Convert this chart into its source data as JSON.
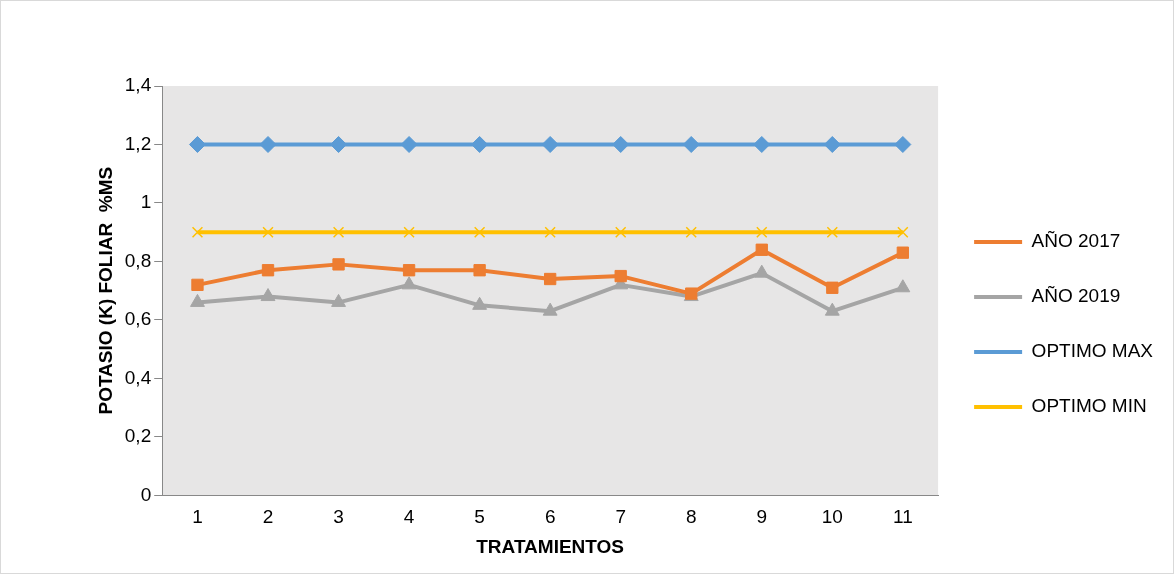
{
  "chart_data": {
    "type": "line",
    "xlabel": "TRATAMIENTOS",
    "ylabel": "POTASIO (K) FOLIAR  %MS",
    "categories": [
      "1",
      "2",
      "3",
      "4",
      "5",
      "6",
      "7",
      "8",
      "9",
      "10",
      "11"
    ],
    "series": [
      {
        "name": "AÑO 2017",
        "color": "#ed7d31",
        "marker": "square",
        "values": [
          0.72,
          0.77,
          0.79,
          0.77,
          0.77,
          0.74,
          0.75,
          0.69,
          0.84,
          0.71,
          0.83
        ]
      },
      {
        "name": "AÑO 2019",
        "color": "#a5a5a5",
        "marker": "triangle",
        "values": [
          0.66,
          0.68,
          0.66,
          0.72,
          0.65,
          0.63,
          0.72,
          0.68,
          0.76,
          0.63,
          0.71
        ]
      },
      {
        "name": "OPTIMO MAX",
        "color": "#5b9bd5",
        "marker": "diamond",
        "values": [
          1.2,
          1.2,
          1.2,
          1.2,
          1.2,
          1.2,
          1.2,
          1.2,
          1.2,
          1.2,
          1.2
        ]
      },
      {
        "name": "OPTIMO MIN",
        "color": "#ffc000",
        "marker": "cross",
        "values": [
          0.9,
          0.9,
          0.9,
          0.9,
          0.9,
          0.9,
          0.9,
          0.9,
          0.9,
          0.9,
          0.9
        ]
      }
    ],
    "ylim": [
      0,
      1.4
    ],
    "yticks": [
      {
        "value": 0,
        "label": "0"
      },
      {
        "value": 0.2,
        "label": "0,2"
      },
      {
        "value": 0.4,
        "label": "0,4"
      },
      {
        "value": 0.6,
        "label": "0,6"
      },
      {
        "value": 0.8,
        "label": "0,8"
      },
      {
        "value": 1,
        "label": "1"
      },
      {
        "value": 1.2,
        "label": "1,2"
      },
      {
        "value": 1.4,
        "label": "1,4"
      }
    ],
    "grid": false,
    "legend": "right"
  }
}
